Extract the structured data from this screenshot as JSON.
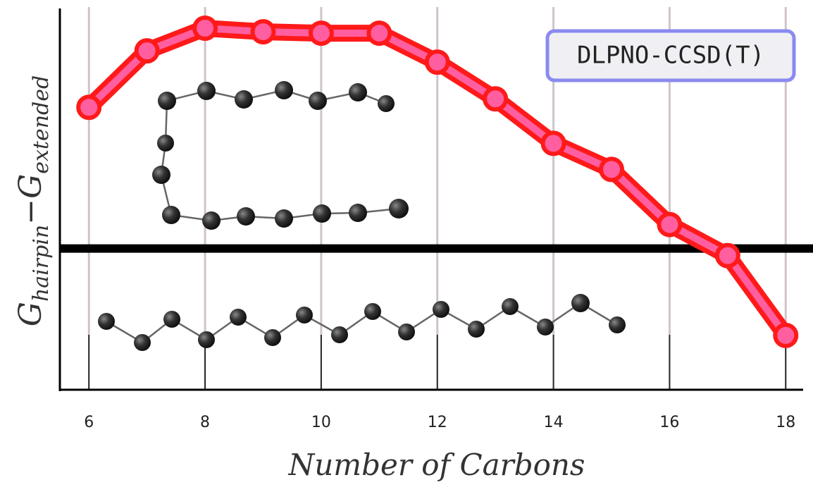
{
  "chart_data": {
    "type": "line",
    "xlabel": "Number of Carbons",
    "ylabel": [
      "G",
      "hairpin",
      "−G",
      "extended"
    ],
    "x": [
      6,
      7,
      8,
      9,
      10,
      11,
      12,
      13,
      14,
      15,
      16,
      17,
      18
    ],
    "series": [
      {
        "name": "DLPNO-CCSD(T)",
        "color": "#ff1a1a",
        "fill": "#ff5fa0",
        "values": [
          10.0,
          14.0,
          15.6,
          15.35,
          15.25,
          15.25,
          13.2,
          10.6,
          7.45,
          5.6,
          1.7,
          -0.5,
          -6.15
        ]
      }
    ],
    "xlim": [
      5.5,
      18.3
    ],
    "ylim": [
      -10,
      17.1
    ],
    "xticks": [
      6,
      8,
      10,
      12,
      14,
      16,
      18
    ],
    "hline": 0,
    "grid": true
  }
}
